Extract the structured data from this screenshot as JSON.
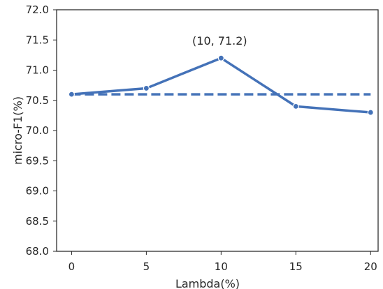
{
  "chart_data": {
    "type": "line",
    "title": "",
    "xlabel": "Lambda(%)",
    "ylabel": "micro-F1(%)",
    "x": [
      0,
      5,
      10,
      15,
      20
    ],
    "xticks": [
      "0",
      "5",
      "10",
      "15",
      "20"
    ],
    "yticks": [
      "68.0",
      "68.5",
      "69.0",
      "69.5",
      "70.0",
      "70.5",
      "71.0",
      "71.5",
      "72.0"
    ],
    "xlim": [
      -1,
      20.5
    ],
    "ylim": [
      68.0,
      72.0
    ],
    "grid": false,
    "series": [
      {
        "style": "solid",
        "marker": "circle",
        "values": [
          70.6,
          70.7,
          71.2,
          70.4,
          70.3
        ],
        "color": "#4472b8"
      },
      {
        "style": "dashed",
        "marker": "none",
        "values": [
          70.6,
          70.6,
          70.6,
          70.6,
          70.6
        ],
        "color": "#4472b8"
      }
    ],
    "annotations": [
      {
        "text": "(10, 71.2)",
        "x": 10,
        "y": 71.2
      }
    ]
  }
}
